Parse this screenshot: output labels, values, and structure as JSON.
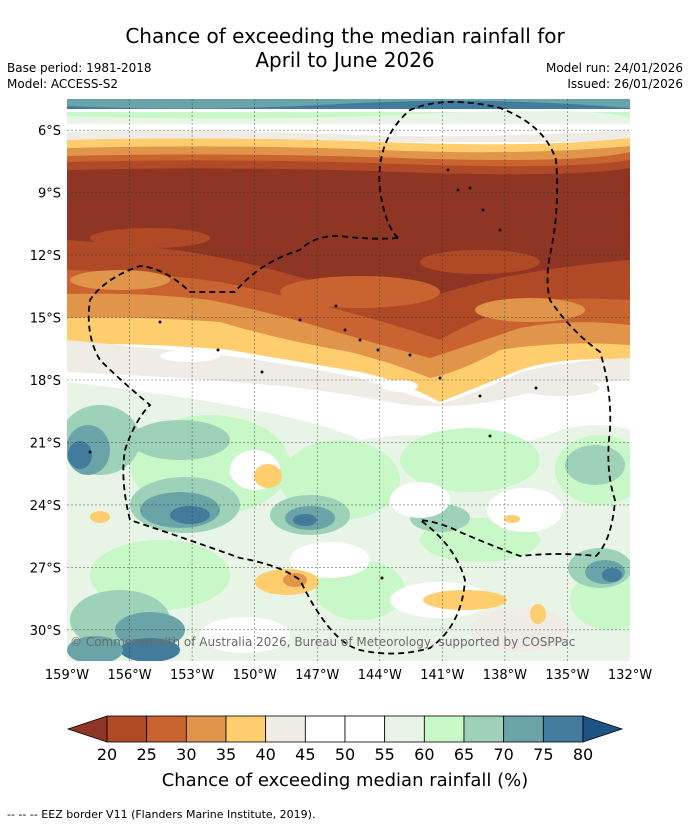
{
  "title": {
    "line1": "Chance of exceeding the median rainfall for",
    "line2": "April to June 2026"
  },
  "meta": {
    "base_period": "Base period: 1981-2018",
    "model": "Model: ACCESS-S2",
    "model_run": "Model run: 24/01/2026",
    "issued": "Issued: 26/01/2026"
  },
  "map": {
    "lat_labels": [
      "6°S",
      "9°S",
      "12°S",
      "15°S",
      "18°S",
      "21°S",
      "24°S",
      "27°S",
      "30°S"
    ],
    "lat_values": [
      -6,
      -9,
      -12,
      -15,
      -18,
      -21,
      -24,
      -27,
      -30
    ],
    "lon_labels": [
      "159°W",
      "156°W",
      "153°W",
      "150°W",
      "147°W",
      "144°W",
      "141°W",
      "138°W",
      "135°W",
      "132°W"
    ],
    "lon_values": [
      -159,
      -156,
      -153,
      -150,
      -147,
      -144,
      -141,
      -138,
      -135,
      -132
    ],
    "extent": {
      "lon_min": -159,
      "lon_max": -132,
      "lat_min": -31.5,
      "lat_max": -4.5
    },
    "copyright": "© Commonwealth of Australia 2026, Bureau of Meteorology, supported by COSPPac"
  },
  "colorbar": {
    "labels": [
      "20",
      "25",
      "30",
      "35",
      "40",
      "45",
      "50",
      "55",
      "60",
      "65",
      "70",
      "75",
      "80"
    ],
    "colors": [
      "#b04a26",
      "#c9632f",
      "#e0954a",
      "#fdcd6e",
      "#efece6",
      "#ffffff",
      "#ffffff",
      "#e8f5e6",
      "#c8f7c8",
      "#9dd2b8",
      "#6aa4a8",
      "#427c9c"
    ],
    "under_color": "#8f3524",
    "over_color": "#1d5486",
    "title": "Chance of exceeding median rainfall (%)"
  },
  "footnote": "--  --  -- EEZ border V11 (Flanders Marine Institute, 2019)."
}
